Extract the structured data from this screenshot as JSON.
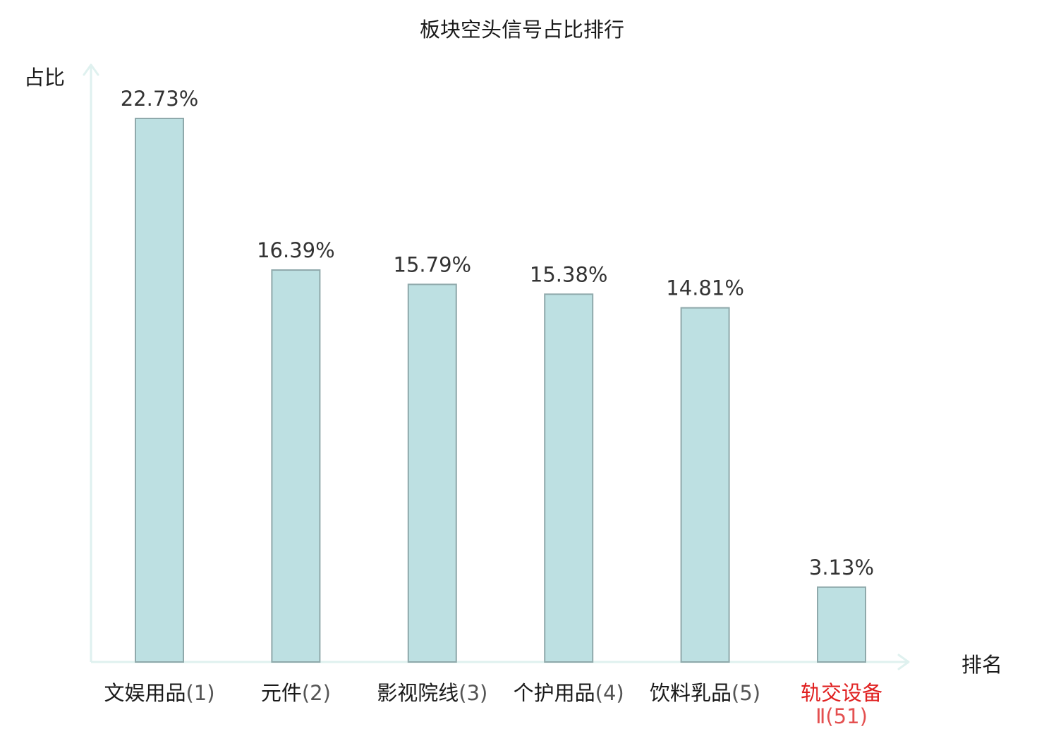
{
  "chart_data": {
    "type": "bar",
    "title": "板块空头信号占比排行",
    "xlabel": "排名",
    "ylabel": "占比",
    "ylim": [
      0,
      25
    ],
    "grid": false,
    "legend": "none",
    "categories": [
      {
        "name": "文娱用品",
        "rank": "(1)",
        "highlight": false
      },
      {
        "name": "元件",
        "rank": "(2)",
        "highlight": false
      },
      {
        "name": "影视院线",
        "rank": "(3)",
        "highlight": false
      },
      {
        "name": "个护用品",
        "rank": "(4)",
        "highlight": false
      },
      {
        "name": "饮料乳品",
        "rank": "(5)",
        "highlight": false
      },
      {
        "name": "轨交设备",
        "rank": "Ⅱ(51)",
        "highlight": true
      }
    ],
    "values": [
      22.73,
      16.39,
      15.79,
      15.38,
      14.81,
      3.13
    ],
    "data_labels": [
      "22.73%",
      "16.39%",
      "15.79%",
      "15.38%",
      "14.81%",
      "3.13%"
    ],
    "colors": {
      "bar_fill": "#bde0e2",
      "bar_stroke": "#8fa9ab",
      "axis": "#dff1ef",
      "text": "#1a1a1a",
      "label_text": "#333333",
      "rank_text": "#555555",
      "highlight_text": "#e02020",
      "highlight_rank_text": "#e45050"
    }
  }
}
